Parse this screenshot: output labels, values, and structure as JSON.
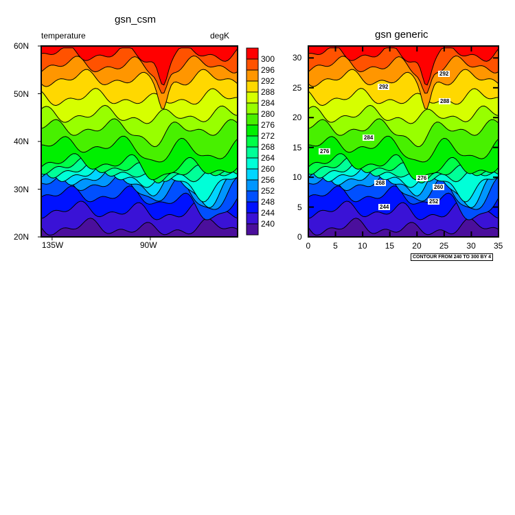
{
  "chart_data": [
    {
      "type": "contour",
      "title": "gsn_csm",
      "left_string": "temperature",
      "right_string": "degK",
      "x_ticks": [
        "135W",
        "90W"
      ],
      "x_tick_values": [
        -135,
        -90
      ],
      "xlim": [
        -140,
        -50
      ],
      "y_ticks": [
        "20N",
        "30N",
        "40N",
        "50N",
        "60N"
      ],
      "y_tick_values": [
        20,
        30,
        40,
        50,
        60
      ],
      "ylim": [
        20,
        60
      ],
      "filled": true,
      "levels": [
        240,
        244,
        248,
        252,
        256,
        260,
        264,
        268,
        272,
        276,
        280,
        284,
        288,
        292,
        296,
        300
      ],
      "level_labels": [
        "240",
        "244",
        "248",
        "252",
        "256",
        "260",
        "264",
        "268",
        "272",
        "276",
        "280",
        "284",
        "288",
        "292",
        "296",
        "300"
      ],
      "colors": [
        "#4b0f9c",
        "#3a12d6",
        "#0012ff",
        "#0050ff",
        "#0096ff",
        "#00d6ff",
        "#00ffd8",
        "#00ff98",
        "#00ff48",
        "#00f000",
        "#48f000",
        "#98ff00",
        "#d6ff00",
        "#ffd800",
        "#ff9600",
        "#ff5200",
        "#ff0000"
      ],
      "legend": "right"
    },
    {
      "type": "contour",
      "title": "gsn generic",
      "x_ticks": [
        "0",
        "5",
        "10",
        "15",
        "20",
        "25",
        "30",
        "35"
      ],
      "x_tick_values": [
        0,
        5,
        10,
        15,
        20,
        25,
        30,
        35
      ],
      "xlim": [
        0,
        35
      ],
      "y_ticks": [
        "0",
        "5",
        "10",
        "15",
        "20",
        "25",
        "30"
      ],
      "y_tick_values": [
        0,
        5,
        10,
        15,
        20,
        25,
        30
      ],
      "ylim": [
        0,
        32
      ],
      "filled": true,
      "line_labels": [
        "292",
        "292",
        "288",
        "284",
        "276",
        "276",
        "268",
        "260",
        "252",
        "244"
      ],
      "info_label": "CONTOUR FROM 240 TO 300 BY 4"
    }
  ]
}
